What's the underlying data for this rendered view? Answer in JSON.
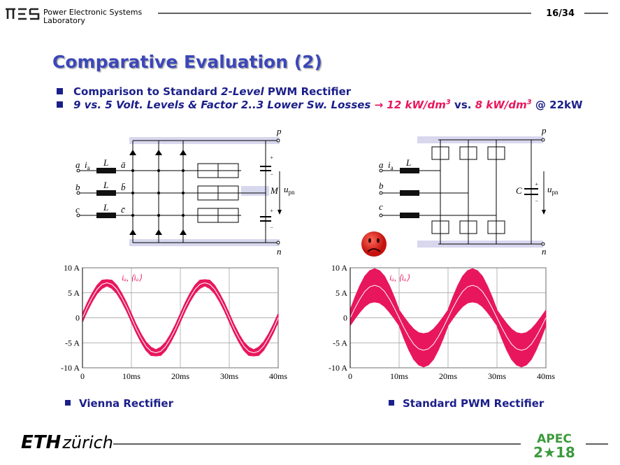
{
  "header": {
    "lab": [
      "Power Electronic Systems",
      "Laboratory"
    ],
    "page": "16/34"
  },
  "title": "Comparative Evaluation (2)",
  "bullets": [
    [
      "Comparison to Standard ",
      "2-Level",
      " PWM Rectifier"
    ],
    [
      "9 vs. 5 Volt. Levels & Factor 2..3 Lower Sw. Losses ",
      "→",
      " 12 kW/dm",
      "3",
      " vs. ",
      "8 kW/dm",
      "3",
      " @ 22kW"
    ]
  ],
  "circuits": [
    {
      "p": "p",
      "n": "n",
      "phases": [
        "a",
        "b",
        "c"
      ],
      "inductors": [
        "L",
        "L",
        "L"
      ],
      "nodes": [
        "ā",
        "b̄",
        "c̄"
      ],
      "current": "i",
      "current_sub": "a",
      "midpoint": "M",
      "voltage": "u",
      "voltage_sub": "pn",
      "signs": [
        "+",
        "−",
        "+",
        "−"
      ]
    },
    {
      "p": "p",
      "n": "n",
      "phases": [
        "a",
        "b",
        "c"
      ],
      "inductor": "L",
      "current": "i",
      "current_sub": "a",
      "capacitor": "C",
      "voltage": "u",
      "voltage_sub": "pn",
      "signs": [
        "+",
        "−"
      ]
    }
  ],
  "chart_data": [
    {
      "type": "line",
      "annotation": "iₐ, ⟨iₐ⟩",
      "xlim": [
        0,
        40
      ],
      "ylim": [
        -10,
        10
      ],
      "grid": true,
      "xticks": [
        0,
        {
          "value": 10,
          "label": "10ms"
        },
        {
          "value": 20,
          "label": "20ms"
        },
        {
          "value": 30,
          "label": "30ms"
        },
        {
          "value": 40,
          "label": "40ms"
        }
      ],
      "yticks": [
        {
          "value": 10,
          "label": "10 A"
        },
        {
          "value": 5,
          "label": "5 A"
        },
        0,
        {
          "value": -5,
          "label": "-5 A"
        },
        {
          "value": -10,
          "label": "-10 A"
        }
      ],
      "x": [
        0,
        1,
        2,
        3,
        4,
        5,
        6,
        7,
        8,
        9,
        10,
        11,
        12,
        13,
        14,
        15,
        16,
        17,
        18,
        19,
        20,
        21,
        22,
        23,
        24,
        25,
        26,
        27,
        28,
        29,
        30,
        31,
        32,
        33,
        34,
        35,
        36,
        37,
        38,
        39,
        40
      ],
      "series": [
        {
          "color": "#e8175d",
          "values": [
            0.8,
            3,
            4.9,
            6.5,
            7.5,
            7.6,
            7.5,
            6.5,
            4.9,
            3,
            0.8,
            -1.4,
            -3.3,
            -4.9,
            -5.9,
            -6.4,
            -5.9,
            -4.9,
            -3.3,
            -1.4,
            0.8,
            3,
            4.9,
            6.5,
            7.5,
            7.6,
            7.5,
            6.5,
            4.9,
            3,
            0.8,
            -1.4,
            -3.3,
            -4.9,
            -5.9,
            -6.4,
            -5.9,
            -4.9,
            -3.3,
            -1.4,
            0.8
          ]
        },
        {
          "color": "#e8175d",
          "values": [
            -0.8,
            1.4,
            3.3,
            4.9,
            5.9,
            6.4,
            5.9,
            4.9,
            3.3,
            1.4,
            -0.8,
            -3,
            -4.9,
            -6.5,
            -7.5,
            -7.6,
            -7.5,
            -6.5,
            -4.9,
            -3,
            -0.8,
            1.4,
            3.3,
            4.9,
            5.9,
            6.4,
            5.9,
            4.9,
            3.3,
            1.4,
            -0.8,
            -3,
            -4.9,
            -6.5,
            -7.5,
            -7.6,
            -7.5,
            -6.5,
            -4.9,
            -3,
            -0.8
          ]
        },
        {
          "color": "#ffffff",
          "values": [
            0,
            2.2,
            4.1,
            5.7,
            6.7,
            7,
            6.7,
            5.7,
            4.1,
            2.2,
            0,
            -2.2,
            -4.1,
            -5.7,
            -6.7,
            -7,
            -6.7,
            -5.7,
            -4.1,
            -2.2,
            0,
            2.2,
            4.1,
            5.7,
            6.7,
            7,
            6.7,
            5.7,
            4.1,
            2.2,
            0,
            -2.2,
            -4.1,
            -5.7,
            -6.7,
            -7,
            -6.7,
            -5.7,
            -4.1,
            -2.2,
            0
          ]
        }
      ]
    },
    {
      "type": "line",
      "annotation": "iₐ, ⟨iₐ⟩",
      "xlim": [
        0,
        40
      ],
      "ylim": [
        -10,
        10
      ],
      "grid": true,
      "xticks": [
        0,
        {
          "value": 10,
          "label": "10ms"
        },
        {
          "value": 20,
          "label": "20ms"
        },
        {
          "value": 30,
          "label": "30ms"
        },
        {
          "value": 40,
          "label": "40ms"
        }
      ],
      "yticks": [
        {
          "value": 10,
          "label": "10 A"
        },
        {
          "value": 5,
          "label": "5 A"
        },
        0,
        {
          "value": -5,
          "label": "-5 A"
        },
        {
          "value": -10,
          "label": "-10 A"
        }
      ],
      "x": [
        0,
        1,
        2,
        3,
        4,
        5,
        6,
        7,
        8,
        9,
        10,
        11,
        12,
        13,
        14,
        15,
        16,
        17,
        18,
        19,
        20,
        21,
        22,
        23,
        24,
        25,
        26,
        27,
        28,
        29,
        30,
        31,
        32,
        33,
        34,
        35,
        36,
        37,
        38,
        39,
        40
      ],
      "series": [
        {
          "color": "#e8175d",
          "values": [
            1.5,
            4.1,
            6.4,
            8.3,
            9.4,
            9.8,
            9.4,
            8.3,
            6.4,
            4.1,
            1.5,
            0.1,
            -1.2,
            -2.3,
            -3,
            -3.2,
            -3,
            -2.3,
            -1.2,
            0.1,
            1.5,
            4.1,
            6.4,
            8.3,
            9.4,
            9.8,
            9.4,
            8.3,
            6.4,
            4.1,
            1.5,
            0.1,
            -1.2,
            -2.3,
            -3,
            -3.2,
            -3,
            -2.3,
            -1.2,
            0.1,
            1.5
          ]
        },
        {
          "color": "#e8175d",
          "values": [
            -1.5,
            -0.1,
            1.2,
            2.3,
            3,
            3.2,
            3,
            2.3,
            1.2,
            -0.1,
            -1.5,
            -4.1,
            -6.4,
            -8.3,
            -9.4,
            -9.8,
            -9.4,
            -8.3,
            -6.4,
            -4.1,
            -1.5,
            -0.1,
            1.2,
            2.3,
            3,
            3.2,
            3,
            2.3,
            1.2,
            -0.1,
            -1.5,
            -4.1,
            -6.4,
            -8.3,
            -9.4,
            -9.8,
            -9.4,
            -8.3,
            -6.4,
            -4.1,
            -1.5
          ]
        },
        {
          "color": "#ffffff",
          "values": [
            0,
            2,
            3.8,
            5.3,
            6.2,
            6.5,
            6.2,
            5.3,
            3.8,
            2,
            0,
            -2,
            -3.8,
            -5.3,
            -6.2,
            -6.5,
            -6.2,
            -5.3,
            -3.8,
            -2,
            0,
            2,
            3.8,
            5.3,
            6.2,
            6.5,
            6.2,
            5.3,
            3.8,
            2,
            0,
            -2,
            -3.8,
            -5.3,
            -6.2,
            -6.5,
            -6.2,
            -5.3,
            -3.8,
            -2,
            0
          ]
        }
      ]
    }
  ],
  "captions": [
    "Vienna Rectifier",
    "Standard PWM Rectifier"
  ],
  "footer": {
    "eth": "ETH",
    "zurich": "zürich",
    "apec": "APEC",
    "year": "2★18"
  }
}
